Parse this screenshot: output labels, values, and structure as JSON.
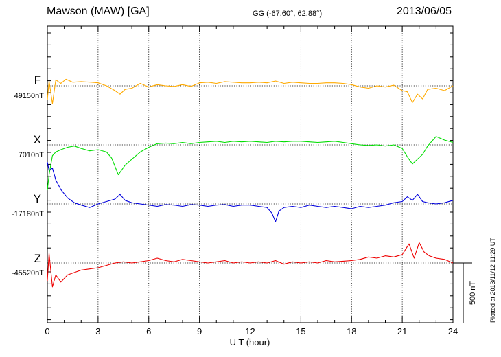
{
  "header": {
    "station": "Mawson (MAW)  [GA]",
    "coords": "GG (-67.60°,  62.88°)",
    "date": "2013/06/05"
  },
  "plotted_note": "Plotted at 2013/11/12 11:29 UT",
  "chart_data": {
    "type": "line",
    "xlabel": "U T (hour)",
    "xlim": [
      0,
      24
    ],
    "xticks": [
      0,
      3,
      6,
      9,
      12,
      15,
      18,
      21,
      24
    ],
    "grid": true,
    "scale_bar": {
      "label": "500 nT",
      "value_nT": 500
    },
    "series": [
      {
        "name": "F",
        "baseline_label": "49150nT",
        "baseline_nT": 49150,
        "color": "#ffaa00",
        "x": [
          0,
          0.1,
          0.3,
          0.5,
          0.8,
          1.1,
          1.5,
          2.0,
          2.6,
          3.0,
          3.5,
          4.0,
          4.3,
          4.6,
          5.0,
          5.5,
          6.0,
          6.5,
          7.0,
          7.5,
          8.0,
          8.5,
          9.0,
          9.5,
          10.0,
          10.5,
          11.0,
          11.5,
          12.0,
          12.5,
          13.0,
          13.5,
          14.0,
          14.5,
          15.0,
          15.5,
          16.0,
          16.5,
          17.0,
          17.5,
          18.0,
          18.5,
          19.0,
          19.5,
          20.0,
          20.5,
          21.0,
          21.3,
          21.6,
          21.9,
          22.2,
          22.5,
          23.0,
          23.5,
          24.0
        ],
        "y": [
          -120,
          40,
          -150,
          50,
          20,
          55,
          30,
          35,
          30,
          25,
          0,
          -40,
          -70,
          -30,
          -20,
          20,
          -10,
          10,
          0,
          -5,
          10,
          -5,
          25,
          30,
          20,
          35,
          30,
          25,
          25,
          30,
          25,
          40,
          20,
          30,
          25,
          20,
          20,
          25,
          25,
          20,
          10,
          -10,
          -20,
          0,
          -10,
          5,
          -40,
          -50,
          -140,
          -70,
          -110,
          -30,
          -20,
          -40,
          0
        ]
      },
      {
        "name": "X",
        "baseline_label": "7010nT",
        "baseline_nT": 7010,
        "color": "#00dd00",
        "x": [
          0,
          0.1,
          0.3,
          0.5,
          0.8,
          1.2,
          1.6,
          2.0,
          2.5,
          3.0,
          3.5,
          3.8,
          4.2,
          4.6,
          5.0,
          5.5,
          6.0,
          6.5,
          7.0,
          7.5,
          8.0,
          8.5,
          9.0,
          9.5,
          10.0,
          10.5,
          11.0,
          11.5,
          12.0,
          12.5,
          13.0,
          13.5,
          14.0,
          14.5,
          15.0,
          15.5,
          16.0,
          16.5,
          17.0,
          17.5,
          18.0,
          18.5,
          19.0,
          19.5,
          20.0,
          20.5,
          21.0,
          21.3,
          21.6,
          21.9,
          22.2,
          22.5,
          23.0,
          23.5,
          24.0
        ],
        "y": [
          -380,
          -250,
          -90,
          -60,
          -40,
          -20,
          -10,
          -30,
          -50,
          -40,
          -60,
          -110,
          -250,
          -170,
          -120,
          -60,
          -20,
          10,
          15,
          10,
          20,
          10,
          20,
          25,
          30,
          20,
          30,
          25,
          30,
          25,
          20,
          30,
          25,
          30,
          30,
          25,
          20,
          25,
          30,
          20,
          10,
          0,
          -5,
          0,
          -10,
          0,
          -30,
          -100,
          -160,
          -120,
          -80,
          -10,
          70,
          40,
          20
        ]
      },
      {
        "name": "Y",
        "baseline_label": "-17180nT",
        "baseline_nT": -17180,
        "color": "#0000dd",
        "x": [
          0,
          0.1,
          0.3,
          0.5,
          0.8,
          1.2,
          1.6,
          2.0,
          2.5,
          3.0,
          3.5,
          4.0,
          4.3,
          4.6,
          5.0,
          5.5,
          6.0,
          6.5,
          7.0,
          7.5,
          8.0,
          8.5,
          9.0,
          9.5,
          10.0,
          10.5,
          11.0,
          11.5,
          12.0,
          12.5,
          13.0,
          13.3,
          13.5,
          13.7,
          14.0,
          14.5,
          15.0,
          15.5,
          16.0,
          16.5,
          17.0,
          17.5,
          18.0,
          18.5,
          19.0,
          19.5,
          20.0,
          20.5,
          21.0,
          21.3,
          21.6,
          21.9,
          22.2,
          22.5,
          23.0,
          23.5,
          24.0
        ],
        "y": [
          350,
          280,
          300,
          200,
          120,
          50,
          10,
          -10,
          -30,
          0,
          20,
          40,
          80,
          30,
          10,
          0,
          -10,
          -20,
          -5,
          -10,
          -20,
          -5,
          -10,
          -20,
          -10,
          -5,
          -20,
          -10,
          -10,
          -20,
          -30,
          -80,
          -150,
          -60,
          -30,
          -20,
          -30,
          -10,
          -20,
          -30,
          -20,
          -30,
          -40,
          -20,
          -30,
          -20,
          -10,
          10,
          20,
          60,
          30,
          80,
          20,
          10,
          0,
          10,
          30
        ]
      },
      {
        "name": "Z",
        "baseline_label": "-45520nT",
        "baseline_nT": -45520,
        "color": "#ee0000",
        "x": [
          0,
          0.1,
          0.3,
          0.5,
          0.8,
          1.2,
          1.6,
          2.0,
          2.5,
          3.0,
          3.5,
          4.0,
          4.5,
          5.0,
          5.5,
          6.0,
          6.5,
          7.0,
          7.5,
          8.0,
          8.5,
          9.0,
          9.5,
          10.0,
          10.5,
          11.0,
          11.5,
          12.0,
          12.5,
          13.0,
          13.5,
          14.0,
          14.5,
          15.0,
          15.5,
          16.0,
          16.5,
          17.0,
          17.5,
          18.0,
          18.5,
          19.0,
          19.5,
          20.0,
          20.5,
          21.0,
          21.4,
          21.7,
          22.0,
          22.3,
          22.6,
          23.0,
          23.5,
          24.0
        ],
        "y": [
          -150,
          80,
          -200,
          -100,
          -160,
          -100,
          -80,
          -60,
          -50,
          -40,
          -20,
          0,
          10,
          0,
          10,
          20,
          40,
          20,
          10,
          30,
          20,
          10,
          0,
          10,
          20,
          0,
          10,
          0,
          10,
          0,
          20,
          -10,
          10,
          0,
          10,
          0,
          20,
          10,
          15,
          20,
          30,
          50,
          40,
          60,
          50,
          70,
          160,
          40,
          170,
          90,
          60,
          40,
          30,
          0
        ]
      }
    ]
  }
}
